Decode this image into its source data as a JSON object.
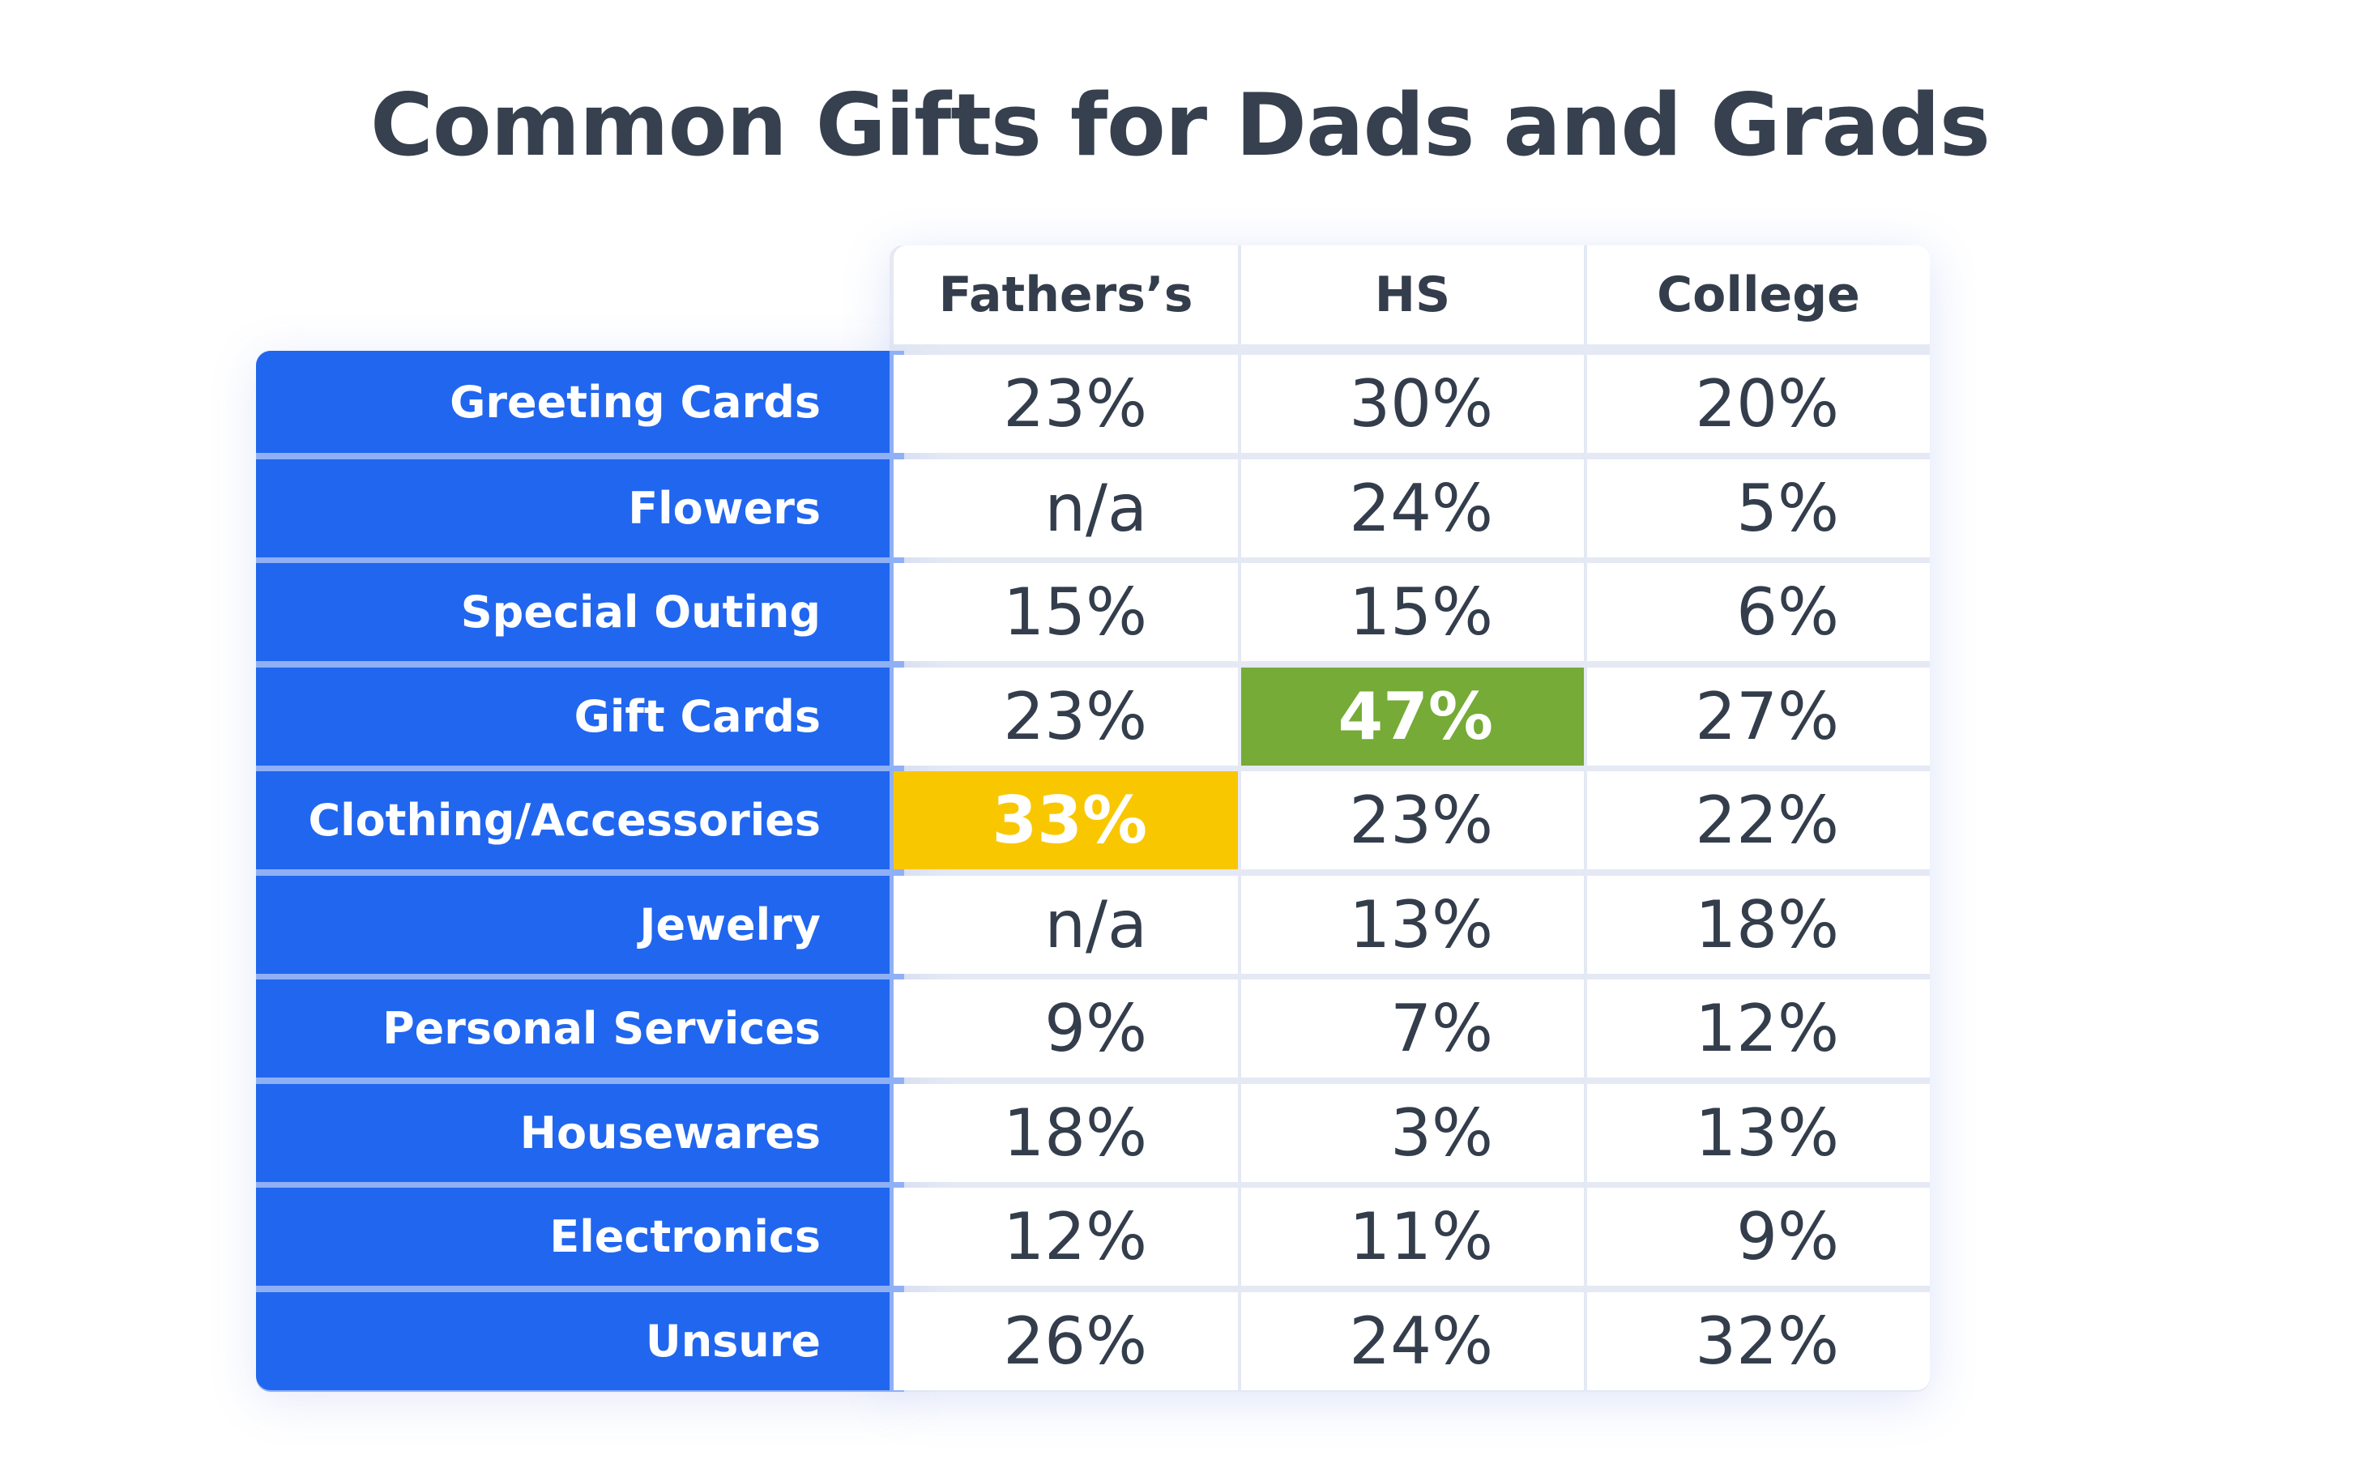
{
  "chart_data": {
    "type": "table",
    "title": "Common Gifts for Dads and Grads",
    "columns": [
      "Fathers’s",
      "HS",
      "College"
    ],
    "rows": [
      {
        "label": "Greeting Cards",
        "values": [
          "23%",
          "30%",
          "20%"
        ]
      },
      {
        "label": "Flowers",
        "values": [
          "n/a",
          "24%",
          "5%"
        ]
      },
      {
        "label": "Special Outing",
        "values": [
          "15%",
          "15%",
          "6%"
        ]
      },
      {
        "label": "Gift Cards",
        "values": [
          "23%",
          "47%",
          "27%"
        ]
      },
      {
        "label": "Clothing/Accessories",
        "values": [
          "33%",
          "23%",
          "22%"
        ]
      },
      {
        "label": "Jewelry",
        "values": [
          "n/a",
          "13%",
          "18%"
        ]
      },
      {
        "label": "Personal Services",
        "values": [
          "9%",
          "7%",
          "12%"
        ]
      },
      {
        "label": "Housewares",
        "values": [
          "18%",
          "3%",
          "13%"
        ]
      },
      {
        "label": "Electronics",
        "values": [
          "12%",
          "11%",
          "9%"
        ]
      },
      {
        "label": "Unsure",
        "values": [
          "26%",
          "24%",
          "32%"
        ]
      }
    ],
    "highlights": [
      {
        "row": 3,
        "col": 1,
        "color": "#75ab36"
      },
      {
        "row": 4,
        "col": 0,
        "color": "#f9c700"
      }
    ],
    "colors": {
      "label_background": "#2166ee",
      "title": "#36404e",
      "text": "#333d4b"
    }
  }
}
